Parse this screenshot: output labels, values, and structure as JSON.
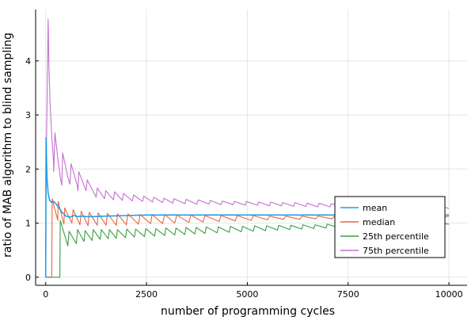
{
  "chart_data": {
    "type": "line",
    "xlabel": "number of programming cycles",
    "ylabel": "ratio of MAB algorithm to blind sampling",
    "xlim": [
      -250,
      10450
    ],
    "ylim": [
      -0.15,
      4.95
    ],
    "xticks": [
      0,
      2500,
      5000,
      7500,
      10000
    ],
    "yticks": [
      0,
      1,
      2,
      3,
      4
    ],
    "grid": true,
    "legend_position": "right",
    "series": [
      {
        "name": "mean",
        "color": "#1f9fe8",
        "points": [
          [
            0,
            0
          ],
          [
            10,
            2.58
          ],
          [
            30,
            1.85
          ],
          [
            60,
            1.55
          ],
          [
            100,
            1.42
          ],
          [
            150,
            1.38
          ],
          [
            200,
            1.4
          ],
          [
            250,
            1.36
          ],
          [
            300,
            1.31
          ],
          [
            350,
            1.26
          ],
          [
            400,
            1.2
          ],
          [
            450,
            1.17
          ],
          [
            500,
            1.13
          ],
          [
            600,
            1.11
          ],
          [
            700,
            1.14
          ],
          [
            800,
            1.12
          ],
          [
            900,
            1.13
          ],
          [
            1000,
            1.12
          ],
          [
            1200,
            1.12
          ],
          [
            1500,
            1.13
          ],
          [
            2000,
            1.14
          ],
          [
            2500,
            1.15
          ],
          [
            3000,
            1.15
          ],
          [
            3500,
            1.15
          ],
          [
            4000,
            1.15
          ],
          [
            5000,
            1.15
          ],
          [
            6000,
            1.15
          ],
          [
            7000,
            1.15
          ],
          [
            8000,
            1.15
          ],
          [
            9000,
            1.15
          ],
          [
            10000,
            1.15
          ]
        ]
      },
      {
        "name": "median",
        "color": "#e8673e",
        "points": [
          [
            0,
            0
          ],
          [
            150,
            0
          ],
          [
            160,
            1.45
          ],
          [
            300,
            1.05
          ],
          [
            310,
            1.4
          ],
          [
            450,
            0.98
          ],
          [
            470,
            1.28
          ],
          [
            650,
            1.0
          ],
          [
            680,
            1.25
          ],
          [
            850,
            0.97
          ],
          [
            880,
            1.22
          ],
          [
            1050,
            0.95
          ],
          [
            1080,
            1.2
          ],
          [
            1280,
            0.96
          ],
          [
            1300,
            1.19
          ],
          [
            1500,
            0.96
          ],
          [
            1530,
            1.18
          ],
          [
            1750,
            0.96
          ],
          [
            1780,
            1.17
          ],
          [
            2000,
            0.97
          ],
          [
            2040,
            1.17
          ],
          [
            2300,
            0.98
          ],
          [
            2340,
            1.16
          ],
          [
            2600,
            0.99
          ],
          [
            2640,
            1.16
          ],
          [
            2900,
            0.99
          ],
          [
            2950,
            1.16
          ],
          [
            3200,
            1.0
          ],
          [
            3250,
            1.15
          ],
          [
            3550,
            1.01
          ],
          [
            3600,
            1.15
          ],
          [
            3900,
            1.02
          ],
          [
            3950,
            1.14
          ],
          [
            4300,
            1.03
          ],
          [
            4350,
            1.14
          ],
          [
            4700,
            1.04
          ],
          [
            4750,
            1.14
          ],
          [
            5100,
            1.05
          ],
          [
            5150,
            1.14
          ],
          [
            5500,
            1.06
          ],
          [
            5550,
            1.13
          ],
          [
            5900,
            1.07
          ],
          [
            5950,
            1.13
          ],
          [
            6300,
            1.07
          ],
          [
            6350,
            1.13
          ],
          [
            6700,
            1.08
          ],
          [
            6750,
            1.13
          ],
          [
            7100,
            1.08
          ],
          [
            7150,
            1.12
          ],
          [
            7500,
            1.09
          ],
          [
            7550,
            1.12
          ],
          [
            7900,
            1.09
          ],
          [
            7950,
            1.12
          ],
          [
            8300,
            1.1
          ],
          [
            8350,
            1.12
          ],
          [
            8700,
            1.1
          ],
          [
            8750,
            1.12
          ],
          [
            9100,
            1.1
          ],
          [
            9150,
            1.12
          ],
          [
            9500,
            1.11
          ],
          [
            9550,
            1.12
          ],
          [
            9900,
            1.11
          ],
          [
            10000,
            1.13
          ]
        ]
      },
      {
        "name": "25th percentile",
        "color": "#3a9e41",
        "points": [
          [
            0,
            0
          ],
          [
            350,
            0
          ],
          [
            360,
            1.05
          ],
          [
            550,
            0.58
          ],
          [
            580,
            0.85
          ],
          [
            760,
            0.62
          ],
          [
            790,
            0.88
          ],
          [
            950,
            0.66
          ],
          [
            980,
            0.86
          ],
          [
            1150,
            0.68
          ],
          [
            1180,
            0.88
          ],
          [
            1350,
            0.7
          ],
          [
            1380,
            0.88
          ],
          [
            1550,
            0.71
          ],
          [
            1580,
            0.88
          ],
          [
            1750,
            0.72
          ],
          [
            1780,
            0.88
          ],
          [
            1980,
            0.73
          ],
          [
            2010,
            0.89
          ],
          [
            2200,
            0.74
          ],
          [
            2230,
            0.89
          ],
          [
            2450,
            0.75
          ],
          [
            2480,
            0.9
          ],
          [
            2700,
            0.76
          ],
          [
            2730,
            0.9
          ],
          [
            2950,
            0.77
          ],
          [
            2980,
            0.91
          ],
          [
            3200,
            0.78
          ],
          [
            3230,
            0.91
          ],
          [
            3450,
            0.79
          ],
          [
            3480,
            0.92
          ],
          [
            3700,
            0.8
          ],
          [
            3730,
            0.92
          ],
          [
            3950,
            0.81
          ],
          [
            3980,
            0.93
          ],
          [
            4250,
            0.82
          ],
          [
            4280,
            0.93
          ],
          [
            4550,
            0.83
          ],
          [
            4580,
            0.94
          ],
          [
            4850,
            0.84
          ],
          [
            4880,
            0.94
          ],
          [
            5150,
            0.85
          ],
          [
            5180,
            0.95
          ],
          [
            5450,
            0.86
          ],
          [
            5480,
            0.95
          ],
          [
            5750,
            0.87
          ],
          [
            5780,
            0.96
          ],
          [
            6050,
            0.88
          ],
          [
            6080,
            0.96
          ],
          [
            6350,
            0.89
          ],
          [
            6380,
            0.97
          ],
          [
            6650,
            0.9
          ],
          [
            6680,
            0.97
          ],
          [
            6950,
            0.91
          ],
          [
            6980,
            0.98
          ],
          [
            7250,
            0.92
          ],
          [
            7280,
            0.98
          ],
          [
            7550,
            0.93
          ],
          [
            7580,
            0.99
          ],
          [
            7850,
            0.94
          ],
          [
            7880,
            0.99
          ],
          [
            8150,
            0.94
          ],
          [
            8180,
            1.0
          ],
          [
            8450,
            0.95
          ],
          [
            8480,
            1.0
          ],
          [
            8750,
            0.95
          ],
          [
            8780,
            1.0
          ],
          [
            9050,
            0.96
          ],
          [
            9080,
            1.0
          ],
          [
            9350,
            0.96
          ],
          [
            9380,
            1.01
          ],
          [
            9650,
            0.97
          ],
          [
            9680,
            1.01
          ],
          [
            10000,
            0.98
          ]
        ]
      },
      {
        "name": "75th percentile",
        "color": "#c56fd1",
        "points": [
          [
            0,
            1.5
          ],
          [
            30,
            3.1
          ],
          [
            60,
            4.77
          ],
          [
            80,
            3.9
          ],
          [
            110,
            3.2
          ],
          [
            150,
            2.6
          ],
          [
            190,
            2.2
          ],
          [
            200,
            1.95
          ],
          [
            230,
            2.67
          ],
          [
            300,
            2.2
          ],
          [
            360,
            1.85
          ],
          [
            400,
            1.7
          ],
          [
            420,
            2.3
          ],
          [
            550,
            1.85
          ],
          [
            600,
            1.72
          ],
          [
            630,
            2.1
          ],
          [
            780,
            1.7
          ],
          [
            800,
            1.6
          ],
          [
            820,
            1.95
          ],
          [
            1000,
            1.6
          ],
          [
            1030,
            1.8
          ],
          [
            1250,
            1.48
          ],
          [
            1280,
            1.65
          ],
          [
            1460,
            1.45
          ],
          [
            1490,
            1.6
          ],
          [
            1680,
            1.43
          ],
          [
            1710,
            1.58
          ],
          [
            1900,
            1.42
          ],
          [
            1930,
            1.55
          ],
          [
            2150,
            1.41
          ],
          [
            2180,
            1.52
          ],
          [
            2400,
            1.4
          ],
          [
            2430,
            1.5
          ],
          [
            2650,
            1.39
          ],
          [
            2680,
            1.48
          ],
          [
            2900,
            1.38
          ],
          [
            2930,
            1.46
          ],
          [
            3150,
            1.37
          ],
          [
            3180,
            1.45
          ],
          [
            3450,
            1.36
          ],
          [
            3480,
            1.44
          ],
          [
            3750,
            1.35
          ],
          [
            3780,
            1.43
          ],
          [
            4050,
            1.35
          ],
          [
            4080,
            1.42
          ],
          [
            4350,
            1.34
          ],
          [
            4380,
            1.41
          ],
          [
            4650,
            1.34
          ],
          [
            4680,
            1.4
          ],
          [
            4950,
            1.33
          ],
          [
            4980,
            1.4
          ],
          [
            5250,
            1.33
          ],
          [
            5280,
            1.39
          ],
          [
            5550,
            1.32
          ],
          [
            5580,
            1.39
          ],
          [
            5850,
            1.32
          ],
          [
            5880,
            1.38
          ],
          [
            6150,
            1.31
          ],
          [
            6180,
            1.38
          ],
          [
            6450,
            1.31
          ],
          [
            6480,
            1.37
          ],
          [
            6750,
            1.3
          ],
          [
            6780,
            1.37
          ],
          [
            7050,
            1.3
          ],
          [
            7080,
            1.36
          ],
          [
            7350,
            1.3
          ],
          [
            7380,
            1.36
          ],
          [
            7650,
            1.29
          ],
          [
            7680,
            1.35
          ],
          [
            7950,
            1.29
          ],
          [
            7980,
            1.35
          ],
          [
            8250,
            1.29
          ],
          [
            8280,
            1.34
          ],
          [
            8550,
            1.28
          ],
          [
            8580,
            1.34
          ],
          [
            8850,
            1.28
          ],
          [
            8880,
            1.33
          ],
          [
            9150,
            1.28
          ],
          [
            9180,
            1.33
          ],
          [
            9450,
            1.27
          ],
          [
            9480,
            1.32
          ],
          [
            9750,
            1.27
          ],
          [
            9780,
            1.32
          ],
          [
            10000,
            1.27
          ]
        ]
      }
    ]
  }
}
